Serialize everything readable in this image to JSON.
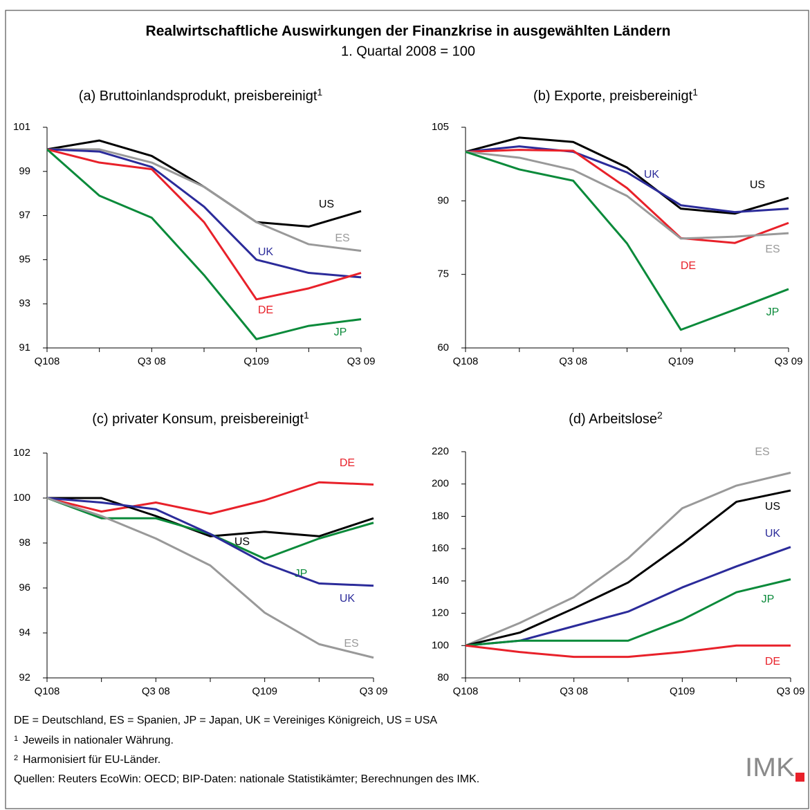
{
  "title": "Realwirtschaftliche Auswirkungen der Finanzkrise in ausgewählten Ländern",
  "subtitle": "1. Quartal 2008 = 100",
  "chart_data": [
    {
      "type": "line",
      "title": "(a) Bruttoinlandsprodukt, preisbereinigt",
      "title_note": "1",
      "categories": [
        "Q108",
        null,
        "Q3 08",
        null,
        "Q109",
        null,
        "Q3 09"
      ],
      "ylim": [
        91,
        101
      ],
      "yticks": [
        91,
        93,
        95,
        97,
        99,
        101
      ],
      "series": [
        {
          "name": "US",
          "color": "#000000",
          "values": [
            100,
            100.4,
            99.7,
            98.3,
            96.7,
            96.5,
            97.2
          ]
        },
        {
          "name": "ES",
          "color": "#999999",
          "values": [
            100,
            100,
            99.4,
            98.3,
            96.7,
            95.7,
            95.4
          ]
        },
        {
          "name": "UK",
          "color": "#2b2b9a",
          "values": [
            100,
            99.9,
            99.2,
            97.4,
            95.0,
            94.4,
            94.2
          ]
        },
        {
          "name": "DE",
          "color": "#e8212a",
          "values": [
            100,
            99.4,
            99.1,
            96.7,
            93.2,
            93.7,
            94.4
          ]
        },
        {
          "name": "JP",
          "color": "#0a8a3a",
          "values": [
            100,
            97.9,
            96.9,
            94.3,
            91.4,
            92.0,
            92.3
          ]
        }
      ]
    },
    {
      "type": "line",
      "title": "(b) Exporte, preisbereinigt",
      "title_note": "1",
      "categories": [
        "Q108",
        null,
        "Q3 08",
        null,
        "Q109",
        null,
        "Q3 09"
      ],
      "ylim": [
        60,
        105
      ],
      "yticks": [
        60,
        75,
        90,
        105
      ],
      "series": [
        {
          "name": "US",
          "color": "#000000",
          "values": [
            100,
            102.9,
            102.0,
            96.8,
            88.4,
            87.4,
            90.6
          ]
        },
        {
          "name": "UK",
          "color": "#2b2b9a",
          "values": [
            100,
            101.1,
            100,
            95.8,
            89.1,
            87.7,
            88.4
          ]
        },
        {
          "name": "DE",
          "color": "#e8212a",
          "values": [
            100,
            100.4,
            100.2,
            92.6,
            82.4,
            81.4,
            85.5
          ]
        },
        {
          "name": "ES",
          "color": "#999999",
          "values": [
            100,
            98.8,
            96.3,
            91.0,
            82.3,
            82.7,
            83.4
          ]
        },
        {
          "name": "JP",
          "color": "#0a8a3a",
          "values": [
            100,
            96.4,
            94.1,
            81.3,
            63.7,
            67.8,
            72.0
          ]
        }
      ]
    },
    {
      "type": "line",
      "title": "(c) privater Konsum, preisbereinigt",
      "title_note": "1",
      "categories": [
        "Q108",
        null,
        "Q3 08",
        null,
        "Q109",
        null,
        "Q3 09"
      ],
      "ylim": [
        92,
        102
      ],
      "yticks": [
        92,
        94,
        96,
        98,
        100,
        102
      ],
      "series": [
        {
          "name": "DE",
          "color": "#e8212a",
          "values": [
            100,
            99.4,
            99.8,
            99.3,
            99.9,
            100.7,
            100.6
          ]
        },
        {
          "name": "US",
          "color": "#000000",
          "values": [
            100,
            100,
            99.2,
            98.3,
            98.5,
            98.3,
            99.1
          ]
        },
        {
          "name": "JP",
          "color": "#0a8a3a",
          "values": [
            100,
            99.1,
            99.1,
            98.4,
            97.3,
            98.2,
            98.9
          ]
        },
        {
          "name": "UK",
          "color": "#2b2b9a",
          "values": [
            100,
            99.8,
            99.5,
            98.4,
            97.1,
            96.2,
            96.1
          ]
        },
        {
          "name": "ES",
          "color": "#999999",
          "values": [
            100,
            99.2,
            98.2,
            97.0,
            94.9,
            93.5,
            92.9
          ]
        }
      ]
    },
    {
      "type": "line",
      "title": "(d) Arbeitslose",
      "title_note": "2",
      "categories": [
        "Q108",
        null,
        "Q3 08",
        null,
        "Q109",
        null,
        "Q3 09"
      ],
      "ylim": [
        80,
        220
      ],
      "yticks": [
        80,
        100,
        120,
        140,
        160,
        180,
        200,
        220
      ],
      "series": [
        {
          "name": "ES",
          "color": "#999999",
          "values": [
            100,
            114,
            130,
            154,
            185,
            199,
            207
          ]
        },
        {
          "name": "US",
          "color": "#000000",
          "values": [
            100,
            108,
            123,
            139,
            163,
            189,
            196
          ]
        },
        {
          "name": "UK",
          "color": "#2b2b9a",
          "values": [
            100,
            103,
            112,
            121,
            136,
            149,
            161
          ]
        },
        {
          "name": "JP",
          "color": "#0a8a3a",
          "values": [
            100,
            103,
            103,
            103,
            116,
            133,
            141
          ]
        },
        {
          "name": "DE",
          "color": "#e8212a",
          "values": [
            100,
            96,
            93,
            93,
            96,
            100,
            100
          ]
        }
      ]
    }
  ],
  "legend_note": "DE = Deutschland, ES = Spanien, JP = Japan, UK = Vereiniges Königreich, US = USA",
  "footnotes": [
    {
      "mark": "1",
      "text": "Jeweils in nationaler Währung."
    },
    {
      "mark": "2",
      "text": "Harmonisiert für EU-Länder."
    }
  ],
  "source": "Quellen: Reuters EcoWin: OECD; BIP-Daten: nationale Statistikämter; Berechnungen des IMK.",
  "logo": "IMK"
}
